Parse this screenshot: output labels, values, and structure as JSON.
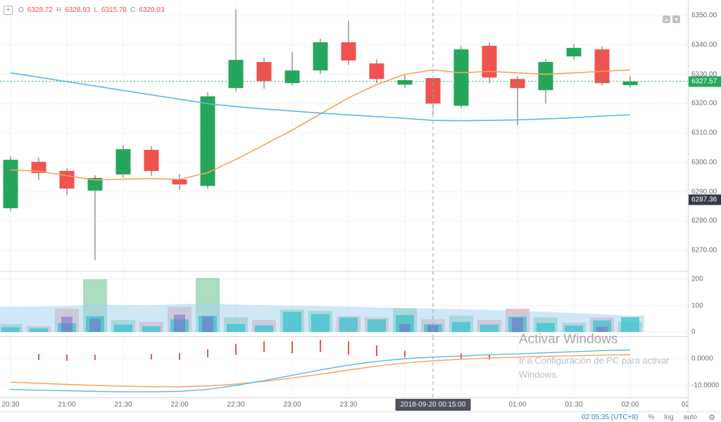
{
  "legend": {
    "k_o": "O",
    "v_o": "6328.72",
    "k_h": "H",
    "v_h": "6328.93",
    "k_l": "L",
    "v_l": "6315.78",
    "k_c": "C",
    "v_c": "6320.03"
  },
  "icons": {
    "add": "+",
    "gear": "⚙",
    "pane_up": "▴",
    "pane_down": "▾"
  },
  "price_scale": {
    "main": [
      "6350.00",
      "6340.00",
      "6330.00",
      "6320.00",
      "6310.00",
      "6300.00",
      "6290.00",
      "6280.00",
      "6270.00"
    ],
    "volume": [
      "200",
      "100",
      "0"
    ],
    "oscillator": [
      "0.0000",
      "-10.0000"
    ],
    "last_price_label": "6327.57",
    "secondary_price_label": "6287.36"
  },
  "time_scale": {
    "labels": [
      {
        "i": 0,
        "t": "20:30"
      },
      {
        "i": 2,
        "t": "21:00"
      },
      {
        "i": 4,
        "t": "21:30"
      },
      {
        "i": 6,
        "t": "22:00"
      },
      {
        "i": 8,
        "t": "22:30"
      },
      {
        "i": 10,
        "t": "23:00"
      },
      {
        "i": 12,
        "t": "23:30"
      },
      {
        "i": 18,
        "t": "01:00"
      },
      {
        "i": 20,
        "t": "01:30"
      },
      {
        "i": 22,
        "t": "02:00"
      },
      {
        "i": 24,
        "t": "02:"
      }
    ],
    "crosshair_label": "2018-09-20 00:15:00"
  },
  "toolbar": {
    "clock": "02:05:35 (UTC+8)",
    "percent": "%",
    "log": "log",
    "auto": "auto"
  },
  "watermark": {
    "title": "Activar Windows",
    "line1": "Ir a Configuración de PC para activar",
    "line2": "Windows."
  },
  "colors": {
    "up": "#26a65b",
    "down": "#ef5350",
    "wick": "#5f6269",
    "ma_orange": "#f8a25a",
    "ma_blue": "#5cb8e6",
    "vol_band": "#a7d4f0",
    "vol_teal": "#3ec1cd",
    "vol_purple": "#7b68c3",
    "grid": "#f0f3fa",
    "crosshair": "#9aa0ac",
    "last_price_line": "#26a65b"
  },
  "chart_data": {
    "type": "candlestick",
    "x": [
      "20:30",
      "20:45",
      "21:00",
      "21:15",
      "21:30",
      "21:45",
      "22:00",
      "22:15",
      "22:30",
      "22:45",
      "23:00",
      "23:15",
      "23:30",
      "23:45",
      "00:00",
      "00:15",
      "00:30",
      "00:45",
      "01:00",
      "01:15",
      "01:30",
      "01:45",
      "02:00"
    ],
    "ohlc_format": [
      "open",
      "high",
      "low",
      "close"
    ],
    "ohlc": [
      [
        6284.4,
        6302.1,
        6283.4,
        6300.9
      ],
      [
        6300.2,
        6301.6,
        6294.0,
        6296.4
      ],
      [
        6297.1,
        6298.0,
        6288.9,
        6291.1
      ],
      [
        6290.4,
        6295.6,
        6266.7,
        6294.7
      ],
      [
        6295.9,
        6305.9,
        6294.9,
        6304.5
      ],
      [
        6304.3,
        6305.5,
        6295.4,
        6297.1
      ],
      [
        6294.2,
        6296.1,
        6290.6,
        6292.5
      ],
      [
        6292.0,
        6323.9,
        6291.1,
        6322.5
      ],
      [
        6325.3,
        6352.2,
        6324.1,
        6334.9
      ],
      [
        6334.2,
        6335.6,
        6325.1,
        6327.7
      ],
      [
        6327.0,
        6337.5,
        6326.1,
        6331.3
      ],
      [
        6331.3,
        6342.1,
        6330.1,
        6340.9
      ],
      [
        6340.9,
        6348.3,
        6333.2,
        6334.7
      ],
      [
        6333.7,
        6335.1,
        6327.0,
        6328.4
      ],
      [
        6326.5,
        6329.9,
        6325.3,
        6328.0
      ],
      [
        6328.72,
        6328.93,
        6315.78,
        6320.03
      ],
      [
        6319.3,
        6339.7,
        6318.4,
        6338.5
      ],
      [
        6339.7,
        6340.9,
        6327.0,
        6328.9
      ],
      [
        6328.4,
        6329.4,
        6312.6,
        6325.3
      ],
      [
        6324.6,
        6335.1,
        6320.1,
        6334.2
      ],
      [
        6336.1,
        6340.4,
        6334.9,
        6339.0
      ],
      [
        6338.5,
        6339.5,
        6326.1,
        6327.0
      ],
      [
        6326.3,
        6329.4,
        6325.5,
        6327.57
      ]
    ],
    "series": [
      {
        "name": "ma-fast-orange",
        "type": "line",
        "values": [
          6297.5,
          6297.0,
          6295.5,
          6294.0,
          6294.3,
          6294.5,
          6294.2,
          6296.5,
          6301.0,
          6306.0,
          6311.0,
          6316.5,
          6322.0,
          6326.5,
          6330.0,
          6331.5,
          6330.5,
          6331.0,
          6330.5,
          6330.0,
          6330.5,
          6331.0,
          6331.5
        ]
      },
      {
        "name": "ma-slow-blue",
        "type": "line",
        "values": [
          6330.5,
          6329.0,
          6327.5,
          6326.0,
          6324.5,
          6323.0,
          6321.5,
          6320.0,
          6319.0,
          6318.2,
          6317.5,
          6316.8,
          6316.2,
          6315.6,
          6315.0,
          6314.3,
          6314.2,
          6314.3,
          6314.5,
          6314.8,
          6315.2,
          6315.8,
          6316.2
        ]
      }
    ],
    "last_price": 6327.57,
    "secondary_price": 6287.36,
    "price_axis": {
      "ticks": [
        6350,
        6340,
        6330,
        6320,
        6310,
        6300,
        6290,
        6280,
        6270
      ],
      "range": [
        6263.1,
        6355.3
      ]
    },
    "volume_pane": {
      "ticks": [
        200,
        100,
        0
      ],
      "band": [
        95,
        96,
        98,
        104,
        102,
        101,
        106,
        108,
        104,
        101,
        99,
        98,
        96,
        93,
        91,
        88,
        86,
        83,
        80,
        76,
        72,
        67,
        62
      ],
      "pale_values": [
        30,
        22,
        88,
        200,
        45,
        38,
        95,
        205,
        55,
        45,
        85,
        80,
        60,
        55,
        90,
        48,
        62,
        45,
        88,
        55,
        35,
        55,
        38
      ],
      "pale_dirs": [
        "u",
        "d",
        "d",
        "u",
        "u",
        "d",
        "d",
        "u",
        "u",
        "d",
        "u",
        "u",
        "d",
        "d",
        "u",
        "d",
        "u",
        "d",
        "d",
        "u",
        "u",
        "d",
        "u"
      ],
      "teal": [
        18,
        14,
        34,
        60,
        28,
        22,
        48,
        62,
        30,
        25,
        76,
        68,
        55,
        48,
        64,
        30,
        38,
        28,
        58,
        34,
        24,
        44,
        56
      ],
      "purple": [
        {
          "i": 2,
          "v": 58
        },
        {
          "i": 3,
          "v": 50
        },
        {
          "i": 6,
          "v": 66
        },
        {
          "i": 7,
          "v": 58
        },
        {
          "i": 14,
          "v": 30
        },
        {
          "i": 15,
          "v": 26
        },
        {
          "i": 18,
          "v": 54
        },
        {
          "i": 21,
          "v": 20
        }
      ]
    },
    "oscillator_pane": {
      "ticks": [
        0,
        -10
      ],
      "blue": [
        -11.5,
        -11.8,
        -12.0,
        -12.2,
        -12.4,
        -12.4,
        -12.2,
        -11.5,
        -10.0,
        -8.2,
        -6.2,
        -4.2,
        -2.4,
        -1.0,
        0.0,
        0.6,
        1.0,
        1.5,
        1.8,
        2.2,
        2.6,
        3.0,
        3.3
      ],
      "orange": [
        -8.8,
        -9.2,
        -9.6,
        -10.0,
        -10.3,
        -10.5,
        -10.5,
        -10.2,
        -9.5,
        -8.5,
        -7.2,
        -5.8,
        -4.2,
        -2.8,
        -1.6,
        -0.8,
        -0.2,
        0.3,
        0.6,
        0.9,
        1.1,
        1.3,
        1.5
      ],
      "red_ticks": [
        {
          "i": 1,
          "a": -0.5,
          "b": 1.8
        },
        {
          "i": 2,
          "a": -0.8,
          "b": 1.5
        },
        {
          "i": 3,
          "a": -0.5,
          "b": 1.5
        },
        {
          "i": 5,
          "a": -0.3,
          "b": 1.8
        },
        {
          "i": 6,
          "a": -0.5,
          "b": 2.0
        },
        {
          "i": 7,
          "a": 0.5,
          "b": 3.5
        },
        {
          "i": 8,
          "a": 1.5,
          "b": 5.5
        },
        {
          "i": 9,
          "a": 2.5,
          "b": 6.5
        },
        {
          "i": 10,
          "a": 2.0,
          "b": 6.5
        },
        {
          "i": 11,
          "a": 2.5,
          "b": 7.0
        },
        {
          "i": 12,
          "a": 1.5,
          "b": 6.5
        },
        {
          "i": 13,
          "a": 1.0,
          "b": 5.0
        },
        {
          "i": 14,
          "a": 0.5,
          "b": 3.0
        },
        {
          "i": 16,
          "a": 0.0,
          "b": 2.0
        },
        {
          "i": 17,
          "a": -0.3,
          "b": 1.5
        }
      ]
    },
    "crosshair": {
      "index": 15
    }
  }
}
